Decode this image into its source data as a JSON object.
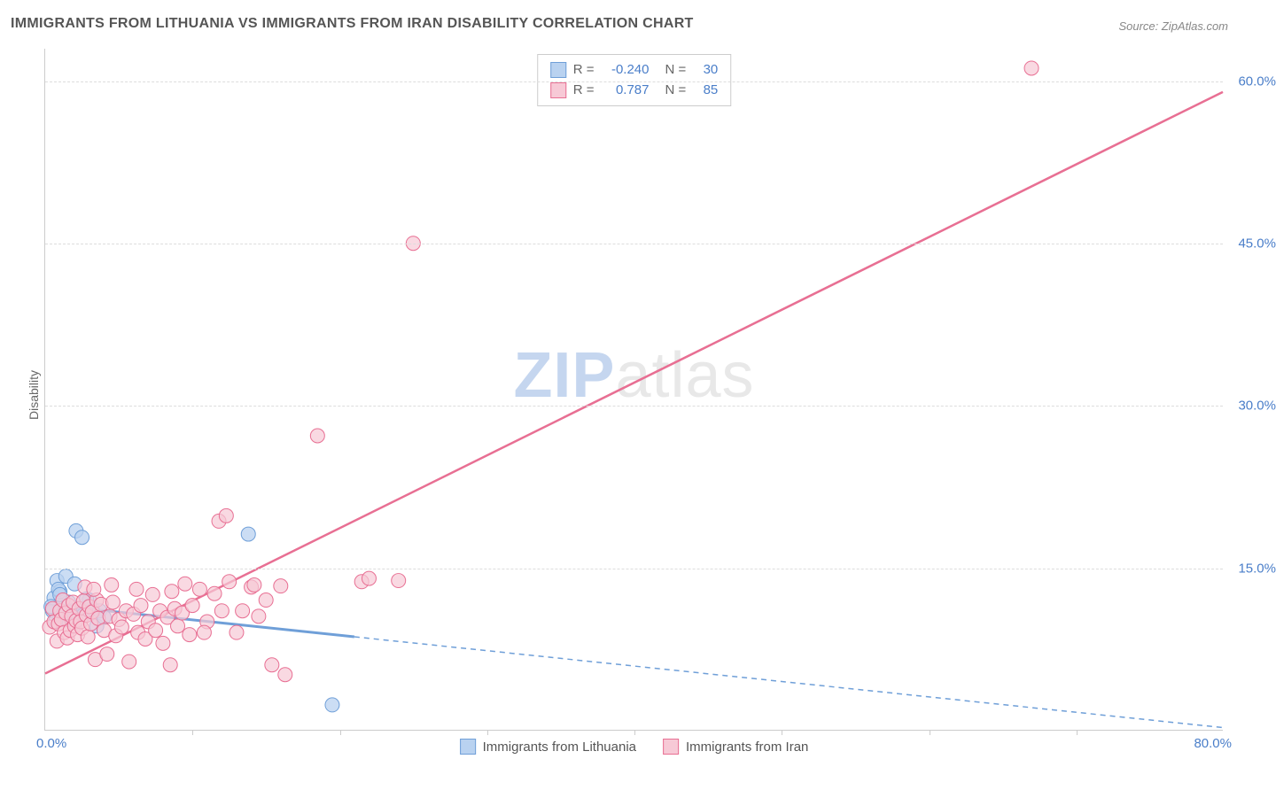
{
  "title": "IMMIGRANTS FROM LITHUANIA VS IMMIGRANTS FROM IRAN DISABILITY CORRELATION CHART",
  "source": "Source: ZipAtlas.com",
  "ylabel": "Disability",
  "watermark_bold": "ZIP",
  "watermark_rest": "atlas",
  "chart": {
    "type": "scatter",
    "background_color": "#ffffff",
    "grid_color": "#dddddd",
    "axis_color": "#cccccc",
    "tick_color": "#4a7ec9",
    "xlim": [
      0,
      80
    ],
    "ylim": [
      0,
      63
    ],
    "xtick_marks": [
      10,
      20,
      30,
      40,
      50,
      60,
      70
    ],
    "xtick_labels": {
      "start": "0.0%",
      "end": "80.0%"
    },
    "ytick_labels": [
      {
        "value": 15,
        "label": "15.0%"
      },
      {
        "value": 30,
        "label": "30.0%"
      },
      {
        "value": 45,
        "label": "45.0%"
      },
      {
        "value": 60,
        "label": "60.0%"
      }
    ],
    "series": [
      {
        "name": "Immigrants from Lithuania",
        "color_fill": "#b9d2f0",
        "color_stroke": "#6f9fd8",
        "marker_radius": 8,
        "marker_opacity": 0.75,
        "r_value": "-0.240",
        "n_value": "30",
        "trend": {
          "solid": {
            "x1": 0,
            "y1": 11.6,
            "x2": 21,
            "y2": 8.6
          },
          "dashed": {
            "x1": 21,
            "y1": 8.6,
            "x2": 80,
            "y2": 0.2
          },
          "line_width": 3,
          "dash_pattern": "6,5"
        },
        "points": [
          [
            0.5,
            11
          ],
          [
            0.6,
            12.2
          ],
          [
            0.8,
            13.8
          ],
          [
            1,
            10.5
          ],
          [
            1,
            12.8
          ],
          [
            1.2,
            11.5
          ],
          [
            1.4,
            14.2
          ],
          [
            1.5,
            10.2
          ],
          [
            1.8,
            11.0
          ],
          [
            2,
            13.5
          ],
          [
            2.1,
            18.4
          ],
          [
            2.5,
            17.8
          ],
          [
            2.3,
            11.2
          ],
          [
            2.6,
            10.6
          ],
          [
            3,
            12.0
          ],
          [
            3.2,
            11.2
          ],
          [
            3.5,
            9.6
          ],
          [
            3.7,
            11.0
          ],
          [
            4,
            10.4
          ],
          [
            1.6,
            11.8
          ],
          [
            0.7,
            10.0
          ],
          [
            1.1,
            11.0
          ],
          [
            13.8,
            18.1
          ],
          [
            19.5,
            2.3
          ],
          [
            0.9,
            13
          ],
          [
            1.3,
            10.8
          ],
          [
            2.8,
            12.1
          ],
          [
            1.0,
            12.5
          ],
          [
            0.4,
            11.4
          ],
          [
            1.7,
            10.9
          ]
        ]
      },
      {
        "name": "Immigrants from Iran",
        "color_fill": "#f7c9d6",
        "color_stroke": "#e86f93",
        "marker_radius": 8,
        "marker_opacity": 0.7,
        "r_value": "0.787",
        "n_value": "85",
        "trend": {
          "solid": {
            "x1": 0,
            "y1": 5.2,
            "x2": 80,
            "y2": 59.0
          },
          "line_width": 2.5
        },
        "points": [
          [
            0.3,
            9.5
          ],
          [
            0.5,
            11.2
          ],
          [
            0.6,
            10.0
          ],
          [
            0.8,
            8.2
          ],
          [
            0.9,
            9.8
          ],
          [
            1,
            11.0
          ],
          [
            1.1,
            10.2
          ],
          [
            1.2,
            12.0
          ],
          [
            1.3,
            9.0
          ],
          [
            1.4,
            10.8
          ],
          [
            1.5,
            8.5
          ],
          [
            1.6,
            11.5
          ],
          [
            1.7,
            9.2
          ],
          [
            1.8,
            10.5
          ],
          [
            1.9,
            11.8
          ],
          [
            2,
            9.6
          ],
          [
            2.1,
            10.1
          ],
          [
            2.2,
            8.8
          ],
          [
            2.3,
            11.2
          ],
          [
            2.4,
            10.0
          ],
          [
            2.5,
            9.4
          ],
          [
            2.6,
            11.9
          ],
          [
            2.7,
            13.2
          ],
          [
            2.8,
            10.6
          ],
          [
            2.9,
            8.6
          ],
          [
            3,
            11.4
          ],
          [
            3.1,
            9.8
          ],
          [
            3.2,
            10.9
          ],
          [
            3.4,
            6.5
          ],
          [
            3.5,
            12.0
          ],
          [
            3.6,
            10.3
          ],
          [
            3.8,
            11.6
          ],
          [
            4,
            9.2
          ],
          [
            4.2,
            7.0
          ],
          [
            4.4,
            10.5
          ],
          [
            4.6,
            11.8
          ],
          [
            4.8,
            8.7
          ],
          [
            5,
            10.2
          ],
          [
            5.2,
            9.5
          ],
          [
            5.5,
            11.0
          ],
          [
            5.7,
            6.3
          ],
          [
            6,
            10.7
          ],
          [
            6.3,
            9.0
          ],
          [
            6.5,
            11.5
          ],
          [
            6.8,
            8.4
          ],
          [
            7,
            10.0
          ],
          [
            7.3,
            12.5
          ],
          [
            7.5,
            9.2
          ],
          [
            7.8,
            11.0
          ],
          [
            8,
            8.0
          ],
          [
            8.3,
            10.4
          ],
          [
            8.5,
            6.0
          ],
          [
            8.8,
            11.2
          ],
          [
            9,
            9.6
          ],
          [
            9.3,
            10.8
          ],
          [
            9.5,
            13.5
          ],
          [
            9.8,
            8.8
          ],
          [
            10,
            11.5
          ],
          [
            10.5,
            13.0
          ],
          [
            11,
            10.0
          ],
          [
            11.5,
            12.6
          ],
          [
            12,
            11.0
          ],
          [
            12.5,
            13.7
          ],
          [
            13,
            9.0
          ],
          [
            13.4,
            11.0
          ],
          [
            14,
            13.2
          ],
          [
            14.5,
            10.5
          ],
          [
            15,
            12.0
          ],
          [
            15.4,
            6.0
          ],
          [
            16.3,
            5.1
          ],
          [
            11.8,
            19.3
          ],
          [
            12.3,
            19.8
          ],
          [
            16,
            13.3
          ],
          [
            18.5,
            27.2
          ],
          [
            21.5,
            13.7
          ],
          [
            22,
            14.0
          ],
          [
            24,
            13.8
          ],
          [
            25,
            45.0
          ],
          [
            14.2,
            13.4
          ],
          [
            3.3,
            13.0
          ],
          [
            4.5,
            13.4
          ],
          [
            6.2,
            13.0
          ],
          [
            8.6,
            12.8
          ],
          [
            10.8,
            9.0
          ],
          [
            67,
            61.2
          ]
        ]
      }
    ]
  }
}
